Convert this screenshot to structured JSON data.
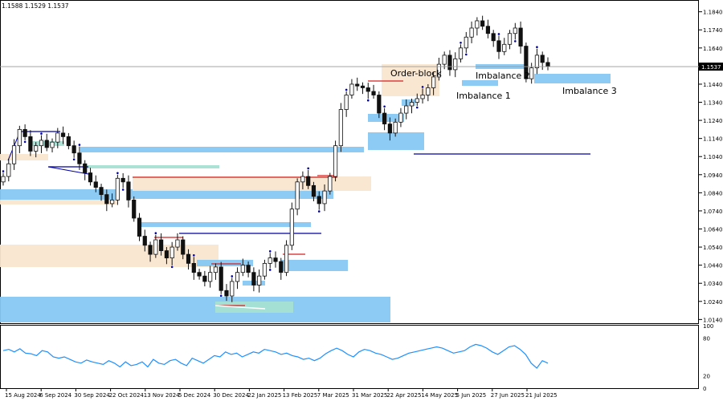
{
  "header": {
    "ohlc": "1.1588 1.1529 1.1537"
  },
  "chart_data": [
    {
      "type": "candlestick",
      "instrument_price_readout": "1.1537",
      "ylim": [
        1.0115,
        1.1905
      ],
      "y_ticks": [
        "1.1840",
        "1.1740",
        "1.1640",
        "1.1540",
        "1.1440",
        "1.1340",
        "1.1240",
        "1.1140",
        "1.1040",
        "1.0940",
        "1.0840",
        "1.0740",
        "1.0640",
        "1.0540",
        "1.0440",
        "1.0340",
        "1.0240",
        "1.0140"
      ],
      "x_labels": [
        "15 Aug 2024",
        "6 Sep 2024",
        "30 Sep 2024",
        "22 Oct 2024",
        "13 Nov 2024",
        "5 Dec 2024",
        "30 Dec 2024",
        "22 Jan 2025",
        "13 Feb 2025",
        "7 Mar 2025",
        "31 Mar 2025",
        "22 Apr 2025",
        "14 May 2025",
        "5 Jun 2025",
        "27 Jun 2025",
        "21 Jul 2025"
      ],
      "current_price": 1.1537,
      "close_series": [
        1.093,
        1.1,
        1.11,
        1.119,
        1.115,
        1.107,
        1.11,
        1.113,
        1.109,
        1.112,
        1.117,
        1.115,
        1.11,
        1.106,
        1.1,
        1.095,
        1.09,
        1.087,
        1.083,
        1.078,
        1.08,
        1.092,
        1.09,
        1.08,
        1.07,
        1.06,
        1.055,
        1.05,
        1.058,
        1.052,
        1.048,
        1.054,
        1.058,
        1.05,
        1.045,
        1.04,
        1.038,
        1.035,
        1.04,
        1.043,
        1.03,
        1.027,
        1.035,
        1.04,
        1.044,
        1.04,
        1.033,
        1.038,
        1.045,
        1.048,
        1.046,
        1.04,
        1.055,
        1.075,
        1.09,
        1.093,
        1.088,
        1.082,
        1.078,
        1.085,
        1.093,
        1.11,
        1.13,
        1.138,
        1.144,
        1.143,
        1.142,
        1.14,
        1.138,
        1.128,
        1.122,
        1.117,
        1.123,
        1.128,
        1.132,
        1.134,
        1.136,
        1.138,
        1.142,
        1.148,
        1.155,
        1.16,
        1.152,
        1.158,
        1.164,
        1.17,
        1.175,
        1.179,
        1.176,
        1.172,
        1.168,
        1.162,
        1.166,
        1.172,
        1.175,
        1.165,
        1.147,
        1.153,
        1.16,
        1.156,
        1.1537
      ],
      "zones": [
        {
          "label": "Order-block",
          "kind": "supply",
          "x_from": "22 Apr 2025",
          "y_from": 1.143,
          "y_to": 1.156
        },
        {
          "label": "Imbalance 1",
          "kind": "imbalance",
          "x_from": "5 Jun 2025",
          "y_from": 1.147,
          "y_to": 1.15
        },
        {
          "label": "Imbalance 2",
          "kind": "imbalance",
          "x_from": "5 Jun 2025",
          "y_from": 1.153,
          "y_to": 1.156
        },
        {
          "label": "Imbalance 3",
          "kind": "imbalance",
          "x_from": "21 Jul 2025",
          "y_from": 1.148,
          "y_to": 1.153
        }
      ],
      "grid": false
    },
    {
      "type": "line",
      "panel": "oscillator",
      "ylim": [
        0,
        100
      ],
      "y_ticks": [
        "100",
        "80",
        "20",
        "0"
      ],
      "values": [
        60,
        62,
        58,
        63,
        56,
        55,
        52,
        60,
        58,
        50,
        48,
        50,
        46,
        42,
        40,
        45,
        42,
        40,
        38,
        44,
        40,
        34,
        42,
        36,
        38,
        42,
        34,
        46,
        40,
        38,
        44,
        46,
        40,
        36,
        48,
        44,
        40,
        46,
        52,
        50,
        58,
        54,
        56,
        50,
        54,
        58,
        56,
        62,
        60,
        58,
        54,
        56,
        52,
        50,
        46,
        48,
        44,
        48,
        55,
        60,
        64,
        60,
        54,
        50,
        58,
        62,
        60,
        56,
        54,
        50,
        46,
        48,
        52,
        56,
        58,
        60,
        62,
        64,
        66,
        64,
        60,
        56,
        58,
        60,
        66,
        70,
        68,
        64,
        58,
        54,
        60,
        66,
        68,
        62,
        54,
        40,
        32,
        44,
        40
      ]
    }
  ],
  "colors": {
    "candle_body": "#111111",
    "zone_imbalance": "#87c8f3",
    "zone_supply": "#fae6d0",
    "line_navy": "#0000a0",
    "line_red": "#d42020",
    "rsi": "#1e90ff",
    "panel_border": "#000000"
  }
}
